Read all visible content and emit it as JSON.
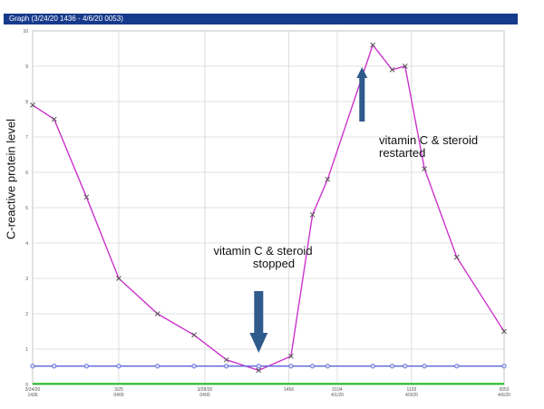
{
  "window": {
    "title": "Graph (3/24/20 1436 - 4/6/20 0053)"
  },
  "chart_data": {
    "type": "line",
    "title": "",
    "xlabel": "",
    "ylabel": "C-reactive protein level",
    "ylim": [
      0,
      10
    ],
    "yticks": [
      "0",
      "1",
      "2",
      "3",
      "4",
      "5",
      "6",
      "7",
      "8",
      "9",
      "10"
    ],
    "grid": true,
    "xticks": [
      {
        "x": 0,
        "label": "3/24/20\n1436"
      },
      {
        "x": 4,
        "label": "3/25\n0400"
      },
      {
        "x": 8,
        "label": "3/28/20\n0400"
      },
      {
        "x": 11.9,
        "label": "1456"
      },
      {
        "x": 14.15,
        "label": "0104\n4/1/20"
      },
      {
        "x": 17.6,
        "label": "1103\n4/3/20"
      },
      {
        "x": 21.9,
        "label": "0053\n4/6/20"
      }
    ],
    "series": [
      {
        "color": "#cc33cc",
        "marker": "x",
        "points": [
          {
            "x": 0,
            "y": 7.9
          },
          {
            "x": 1,
            "y": 7.5
          },
          {
            "x": 2.5,
            "y": 5.3
          },
          {
            "x": 4,
            "y": 3.0
          },
          {
            "x": 5.8,
            "y": 2.0
          },
          {
            "x": 7.5,
            "y": 1.4
          },
          {
            "x": 9,
            "y": 0.7
          },
          {
            "x": 10.5,
            "y": 0.4
          },
          {
            "x": 12,
            "y": 0.8
          },
          {
            "x": 13,
            "y": 4.8
          },
          {
            "x": 13.7,
            "y": 5.8
          },
          {
            "x": 15.8,
            "y": 9.6
          },
          {
            "x": 16.7,
            "y": 8.9
          },
          {
            "x": 17.3,
            "y": 9.0
          },
          {
            "x": 18.2,
            "y": 6.1
          },
          {
            "x": 19.7,
            "y": 3.6
          },
          {
            "x": 21.9,
            "y": 1.5
          }
        ]
      },
      {
        "color": "#5a62d8",
        "marker": "circle",
        "points": [
          {
            "x": 0,
            "y": 0.52
          },
          {
            "x": 1,
            "y": 0.52
          },
          {
            "x": 2.5,
            "y": 0.52
          },
          {
            "x": 4,
            "y": 0.52
          },
          {
            "x": 5.8,
            "y": 0.52
          },
          {
            "x": 7.5,
            "y": 0.52
          },
          {
            "x": 9,
            "y": 0.52
          },
          {
            "x": 10.5,
            "y": 0.52
          },
          {
            "x": 12,
            "y": 0.52
          },
          {
            "x": 13,
            "y": 0.52
          },
          {
            "x": 13.7,
            "y": 0.52
          },
          {
            "x": 15.8,
            "y": 0.52
          },
          {
            "x": 16.7,
            "y": 0.52
          },
          {
            "x": 17.3,
            "y": 0.52
          },
          {
            "x": 18.2,
            "y": 0.52
          },
          {
            "x": 19.7,
            "y": 0.52
          },
          {
            "x": 21.9,
            "y": 0.52
          }
        ]
      },
      {
        "color": "#22bb22",
        "marker": "none",
        "points": [
          {
            "x": 0,
            "y": 0.02
          },
          {
            "x": 21.9,
            "y": 0.02
          }
        ]
      }
    ],
    "annotations": [
      {
        "line1": "vitamin C & steroid",
        "line2": "stopped",
        "arrow": "down",
        "x": 10.5,
        "arrow_color": "#2f5a8c"
      },
      {
        "line1": "vitamin C & steroid",
        "line2": "restarted",
        "arrow": "up",
        "x": 15.3,
        "arrow_color": "#2f5a8c"
      }
    ]
  }
}
